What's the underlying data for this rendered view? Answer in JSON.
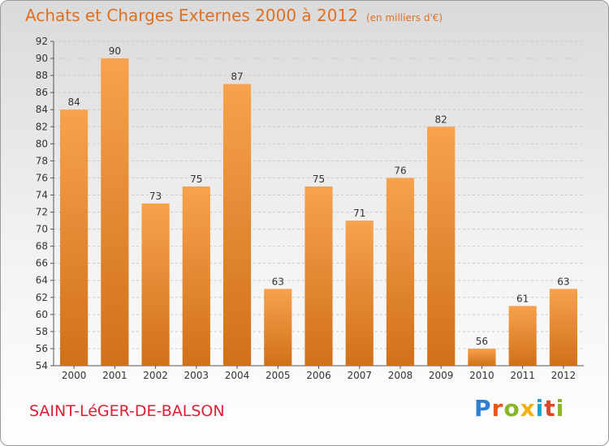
{
  "header": {
    "title": "Achats et Charges Externes 2000 à 2012",
    "unit": "(en milliers d'€)"
  },
  "footer": {
    "commune": "SAINT-LéGER-DE-BALSON",
    "logo": "Proxiti"
  },
  "colors": {
    "accent": "#e07020",
    "bar_light": "#f7a24c",
    "bar_dark": "#d1701a",
    "commune": "#dd1f33"
  },
  "chart_data": {
    "type": "bar",
    "title": "Achats et Charges Externes 2000 à 2012",
    "subtitle": "(en milliers d'€)",
    "xlabel": "",
    "ylabel": "",
    "categories": [
      "2000",
      "2001",
      "2002",
      "2003",
      "2004",
      "2005",
      "2006",
      "2007",
      "2008",
      "2009",
      "2010",
      "2011",
      "2012"
    ],
    "values": [
      84,
      90,
      73,
      75,
      87,
      63,
      75,
      71,
      76,
      82,
      56,
      61,
      63
    ],
    "ylim": [
      54,
      92
    ],
    "yticks": [
      54,
      56,
      58,
      60,
      62,
      64,
      66,
      68,
      70,
      72,
      74,
      76,
      78,
      80,
      82,
      84,
      86,
      88,
      90,
      92
    ],
    "grid": true,
    "legend": "none"
  }
}
